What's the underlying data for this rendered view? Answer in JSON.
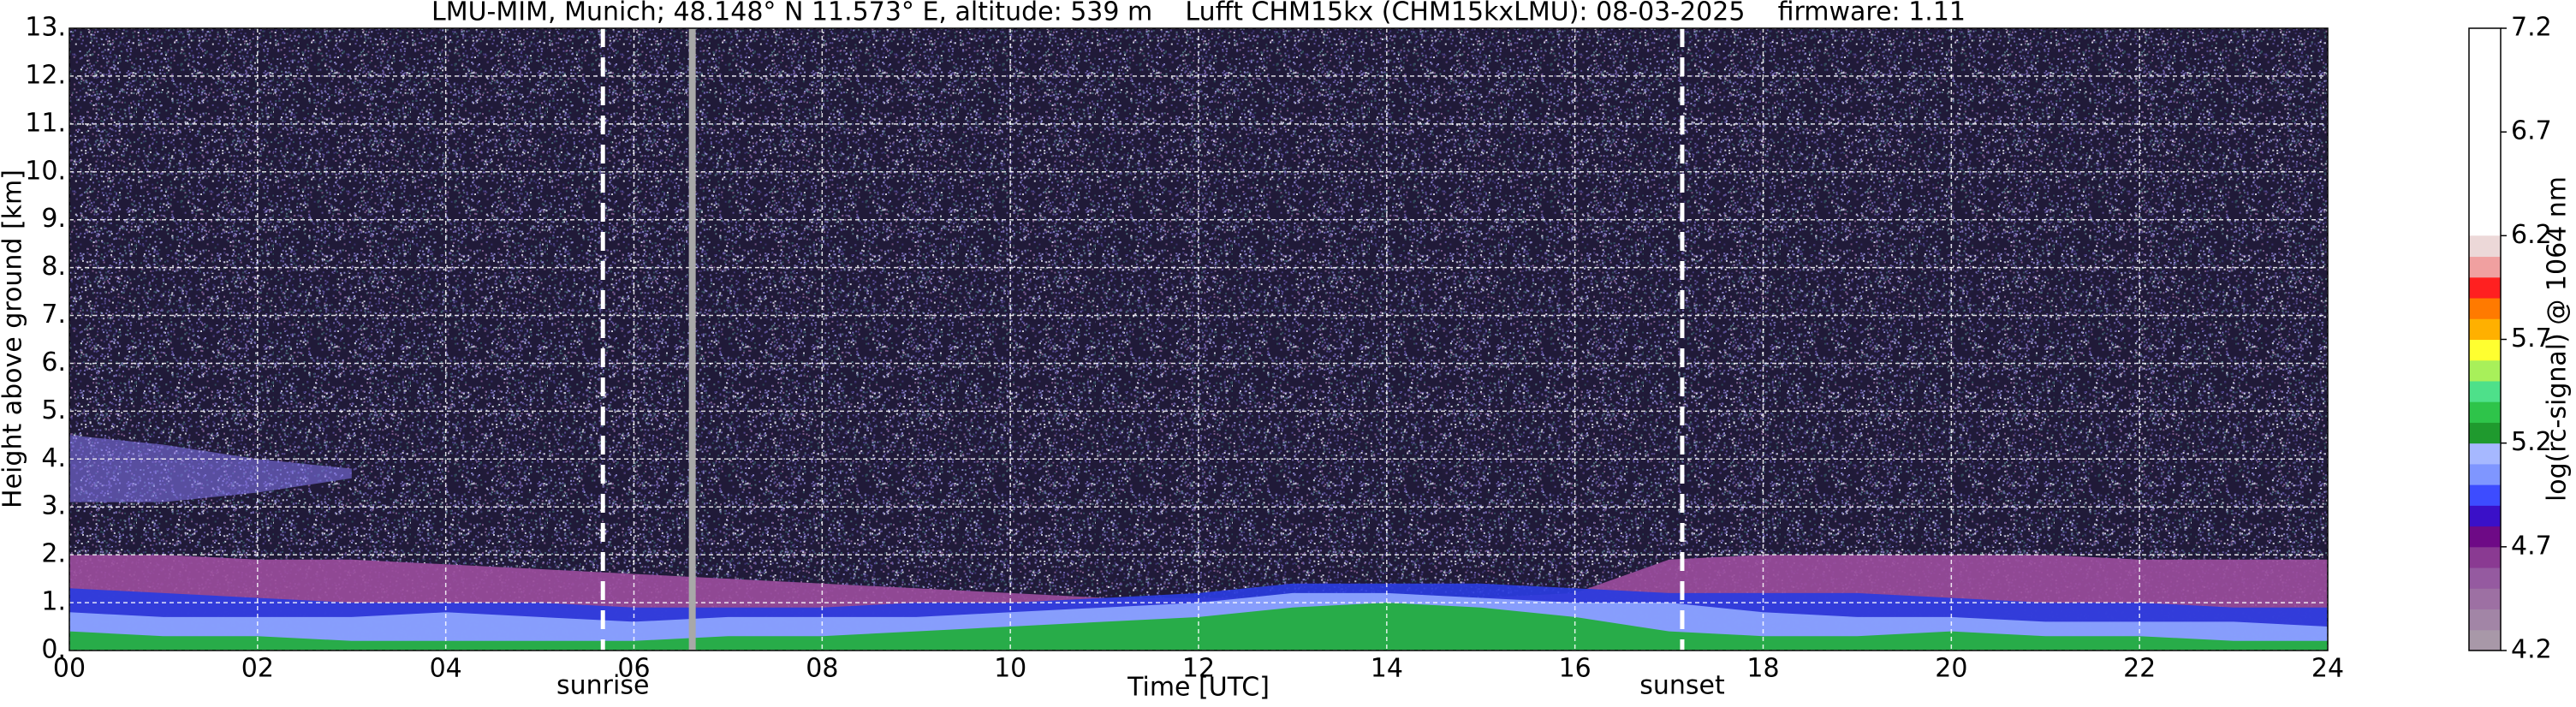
{
  "chart_data": {
    "type": "ceilometer",
    "title": "LMU-MIM, Munich; 48.148° N 11.573° E, altitude: 539 m    Lufft CHM15kx (CHM15kxLMU): 08-03-2025    firmware: 1.11",
    "xlabel": "Time [UTC]",
    "ylabel": "Height above ground [km]",
    "xlim": [
      0,
      24
    ],
    "xticks": [
      {
        "value": 0,
        "label": "00"
      },
      {
        "value": 2,
        "label": "02"
      },
      {
        "value": 4,
        "label": "04"
      },
      {
        "value": 6,
        "label": "06"
      },
      {
        "value": 8,
        "label": "08"
      },
      {
        "value": 10,
        "label": "10"
      },
      {
        "value": 12,
        "label": "12"
      },
      {
        "value": 14,
        "label": "14"
      },
      {
        "value": 16,
        "label": "16"
      },
      {
        "value": 18,
        "label": "18"
      },
      {
        "value": 20,
        "label": "20"
      },
      {
        "value": 22,
        "label": "22"
      },
      {
        "value": 24,
        "label": "24"
      }
    ],
    "ylim": [
      0,
      13
    ],
    "yticks": [
      {
        "value": 0,
        "label": "0."
      },
      {
        "value": 1,
        "label": "1."
      },
      {
        "value": 2,
        "label": "2."
      },
      {
        "value": 3,
        "label": "3."
      },
      {
        "value": 4,
        "label": "4."
      },
      {
        "value": 5,
        "label": "5."
      },
      {
        "value": 6,
        "label": "6."
      },
      {
        "value": 7,
        "label": "7."
      },
      {
        "value": 8,
        "label": "8."
      },
      {
        "value": 9,
        "label": "9."
      },
      {
        "value": 10,
        "label": "10."
      },
      {
        "value": 11,
        "label": "11."
      },
      {
        "value": 12,
        "label": "12."
      },
      {
        "value": 13,
        "label": "13."
      }
    ],
    "grid": true,
    "x": [
      0,
      1,
      2,
      3,
      4,
      5,
      6,
      7,
      8,
      9,
      10,
      11,
      12,
      13,
      14,
      15,
      16,
      17,
      18,
      19,
      20,
      21,
      22,
      23,
      24
    ],
    "series": [
      {
        "color": "#9a4c9c",
        "values": [
          2.0,
          2.0,
          1.9,
          1.9,
          1.8,
          1.7,
          1.6,
          1.5,
          1.4,
          1.3,
          1.2,
          1.1,
          1.1,
          1.1,
          1.1,
          1.1,
          1.2,
          1.9,
          2.0,
          2.0,
          2.0,
          2.0,
          1.9,
          1.9,
          1.9
        ]
      },
      {
        "color": "#2a3ce0",
        "values": [
          1.3,
          1.2,
          1.1,
          1.0,
          1.0,
          1.0,
          0.9,
          0.9,
          0.9,
          1.0,
          1.0,
          1.1,
          1.2,
          1.4,
          1.4,
          1.4,
          1.3,
          1.2,
          1.2,
          1.2,
          1.1,
          1.0,
          1.0,
          0.9,
          0.9
        ]
      },
      {
        "color": "#8ea6ff",
        "values": [
          0.8,
          0.7,
          0.7,
          0.7,
          0.8,
          0.7,
          0.6,
          0.7,
          0.7,
          0.7,
          0.8,
          0.9,
          1.0,
          1.2,
          1.2,
          1.1,
          1.0,
          1.0,
          0.8,
          0.7,
          0.7,
          0.6,
          0.6,
          0.6,
          0.5
        ]
      },
      {
        "color": "#1fae3a",
        "values": [
          0.4,
          0.3,
          0.3,
          0.2,
          0.2,
          0.2,
          0.2,
          0.3,
          0.3,
          0.4,
          0.5,
          0.6,
          0.7,
          0.9,
          1.0,
          0.9,
          0.7,
          0.4,
          0.3,
          0.3,
          0.4,
          0.3,
          0.3,
          0.2,
          0.2
        ]
      },
      {
        "color": "#7f72e6",
        "values": [
          4.5,
          4.3,
          4.0,
          3.8,
          null,
          null,
          null,
          null,
          null,
          null,
          null,
          null,
          null,
          null,
          null,
          null,
          null,
          null,
          null,
          null,
          null,
          null,
          null,
          null,
          null
        ],
        "base": [
          3.1,
          3.1,
          3.3,
          3.6,
          null,
          null,
          null,
          null,
          null,
          null,
          null,
          null,
          null,
          null,
          null,
          null,
          null,
          null,
          null,
          null,
          null,
          null,
          null,
          null,
          null
        ]
      }
    ],
    "vlines": [
      {
        "label": "sunrise",
        "x": 5.67
      },
      {
        "label": "sunset",
        "x": 17.14
      }
    ],
    "gap": {
      "x": 6.62,
      "color": "#a8a8a8"
    },
    "colorbar": {
      "label": "log(rc-signal) @ 1064 nm",
      "lim": [
        4.2,
        7.2
      ],
      "ticks": [
        4.2,
        4.7,
        5.2,
        5.7,
        6.2,
        6.7,
        7.2
      ],
      "levels": [
        4.2,
        4.3,
        4.4,
        4.5,
        4.6,
        4.7,
        4.8,
        4.9,
        5.0,
        5.1,
        5.2,
        5.3,
        5.4,
        5.5,
        5.6,
        5.7,
        5.8,
        5.9,
        6.0,
        6.1,
        6.2
      ],
      "colors": [
        "#a898a8",
        "#a285a6",
        "#9d70a3",
        "#955aa0",
        "#8a3a92",
        "#6e0a86",
        "#3a10c8",
        "#3d4cff",
        "#7f96ff",
        "#a6b8ff",
        "#1f9a2e",
        "#2ec44a",
        "#4ee08a",
        "#a8f05a",
        "#ffff30",
        "#ffb000",
        "#ff7a00",
        "#ff2020",
        "#f0a0a0",
        "#ecd8d8"
      ]
    }
  }
}
